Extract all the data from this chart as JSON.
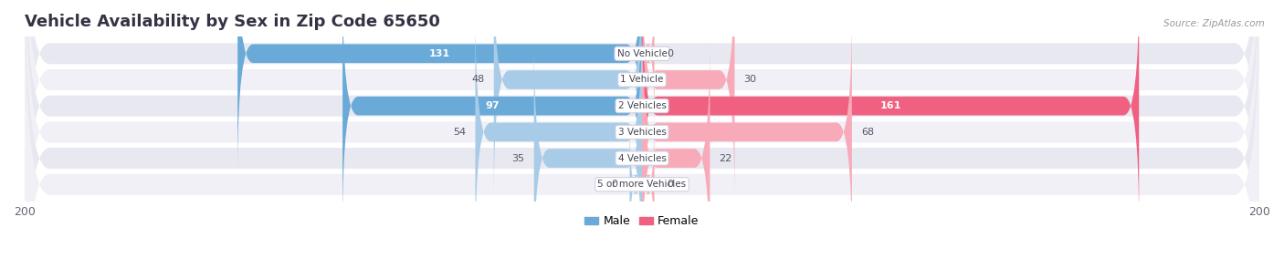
{
  "title": "Vehicle Availability by Sex in Zip Code 65650",
  "source": "Source: ZipAtlas.com",
  "categories": [
    "No Vehicle",
    "1 Vehicle",
    "2 Vehicles",
    "3 Vehicles",
    "4 Vehicles",
    "5 or more Vehicles"
  ],
  "male_values": [
    131,
    48,
    97,
    54,
    35,
    0
  ],
  "female_values": [
    0,
    30,
    161,
    68,
    22,
    0
  ],
  "male_color_dark": "#6aaad8",
  "male_color_light": "#a8cce8",
  "female_color_dark": "#f06080",
  "female_color_light": "#f8aab8",
  "axis_max": 200,
  "bg_color": "#ffffff",
  "row_bg_even": "#e8e8f0",
  "row_bg_odd": "#f0f0f6",
  "label_fontsize": 8,
  "title_fontsize": 13,
  "legend_male": "Male",
  "legend_female": "Female"
}
